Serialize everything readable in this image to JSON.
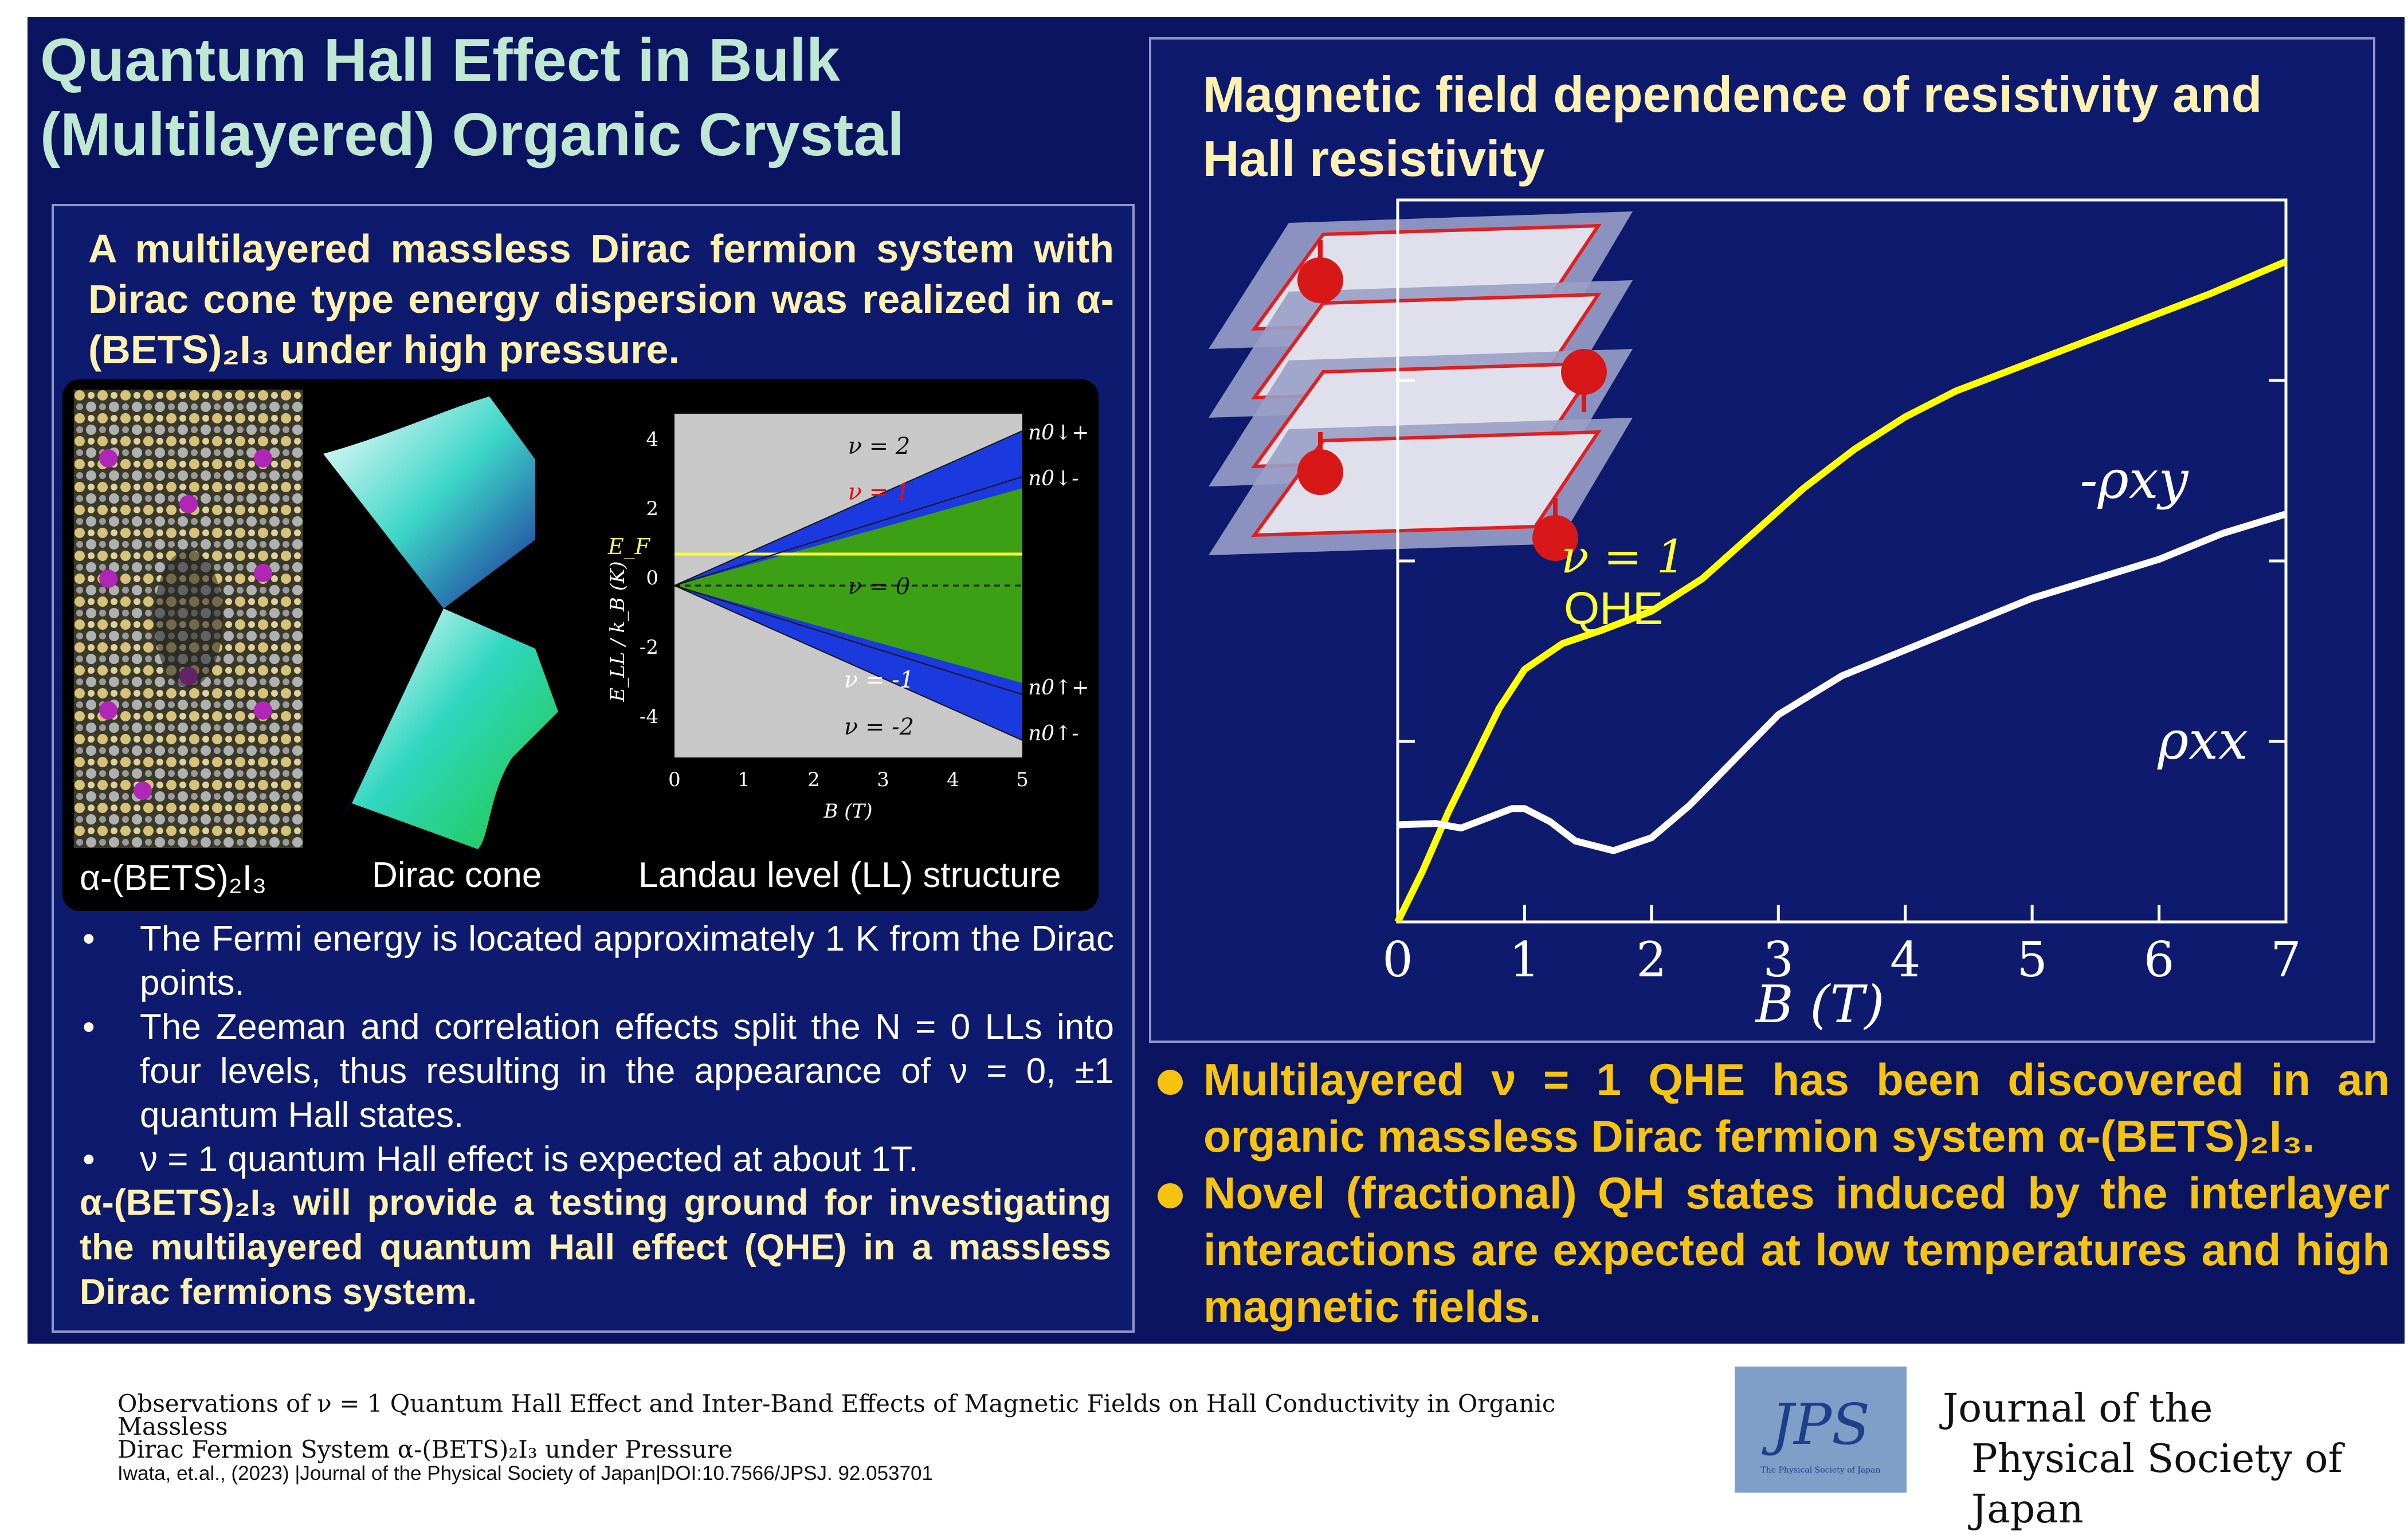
{
  "title": {
    "line1": "Quantum Hall Effect in Bulk",
    "line2": "(Multilayered) Organic Crystal"
  },
  "left_panel": {
    "intro": "A multilayered massless Dirac fermion system with Dirac cone type energy dispersion was realized in α-(BETS)₂I₃ under high pressure.",
    "figure_labels": {
      "crystal": "α-(BETS)₂I₃",
      "cone": "Dirac cone",
      "ll": "Landau level (LL) structure"
    },
    "ll_plot": {
      "xlabel": "B (T)",
      "ylabel": "E_LL / k_B (K)",
      "xticks": [
        "0",
        "1",
        "2",
        "3",
        "4",
        "5"
      ],
      "yticks": [
        "4",
        "2",
        "0",
        "-2",
        "-4"
      ],
      "ef_label": "E_F",
      "region_labels": [
        "ν = 2",
        "ν = 1",
        "ν = 0",
        "ν = -1",
        "ν = -2"
      ],
      "level_labels": [
        "n0↓+",
        "n0↓-",
        "n0↑+",
        "n0↑-"
      ]
    },
    "bullets": [
      "The Fermi energy is located approximately 1 K from the Dirac points.",
      "The Zeeman and correlation effects split the N = 0 LLs into four levels, thus resulting in the appearance of ν = 0, ±1 quantum Hall states.",
      "ν = 1 quantum Hall effect is expected at about 1T."
    ],
    "bullet_symbol": "•",
    "conclusion": "α-(BETS)₂I₃ will provide a testing ground for investigating the multilayered quantum Hall effect (QHE) in a massless Dirac fermions system."
  },
  "right_panel": {
    "title": "Magnetic field dependence of resistivity and Hall resistivity",
    "qhe_label_1": "ν = 1",
    "qhe_label_2": "QHE",
    "chart_data": {
      "type": "line",
      "xlabel": "B (T)",
      "xlim": [
        0,
        7
      ],
      "xticks": [
        "0",
        "1",
        "2",
        "3",
        "4",
        "5",
        "6",
        "7"
      ],
      "series": [
        {
          "name": "-ρxy",
          "color": "#ffff00",
          "x": [
            0,
            0.2,
            0.4,
            0.6,
            0.8,
            1.0,
            1.3,
            1.6,
            2.0,
            2.4,
            2.8,
            3.2,
            3.6,
            4.0,
            4.4,
            4.8,
            5.2,
            5.6,
            6.0,
            6.4,
            7.0
          ],
          "y": [
            0.0,
            0.08,
            0.17,
            0.25,
            0.33,
            0.39,
            0.43,
            0.45,
            0.48,
            0.53,
            0.6,
            0.67,
            0.73,
            0.78,
            0.82,
            0.85,
            0.88,
            0.91,
            0.94,
            0.97,
            1.02
          ]
        },
        {
          "name": "ρxx",
          "color": "#ffffff",
          "x": [
            0,
            0.3,
            0.5,
            0.7,
            0.9,
            1.0,
            1.2,
            1.4,
            1.7,
            2.0,
            2.3,
            2.7,
            3.0,
            3.5,
            4.0,
            4.5,
            5.0,
            5.5,
            6.0,
            6.5,
            7.0
          ],
          "y": [
            0.15,
            0.152,
            0.145,
            0.16,
            0.175,
            0.175,
            0.155,
            0.125,
            0.11,
            0.13,
            0.18,
            0.26,
            0.32,
            0.38,
            0.42,
            0.46,
            0.5,
            0.53,
            0.56,
            0.6,
            0.63
          ]
        }
      ]
    }
  },
  "findings": {
    "item1": "Multilayered ν = 1 QHE has been discovered in an organic massless Dirac fermion system α-(BETS)₂I₃.",
    "item2": "Novel (fractional) QH states induced by the interlayer interactions are expected at low temperatures and high magnetic fields."
  },
  "footer": {
    "paper_title_1": "Observations of ν = 1 Quantum Hall Effect and Inter-Band Effects of Magnetic Fields on Hall Conductivity in Organic Massless",
    "paper_title_2": "Dirac Fermion System α-(BETS)₂I₃ under Pressure",
    "citation": "Iwata, et.al., (2023) |Journal of the Physical Society of Japan|DOI:10.7566/JPSJ. 92.053701"
  },
  "journal": {
    "logo_text": "JPS",
    "logo_small": "The Physical Society of Japan",
    "name_line1": "Journal of the",
    "name_line2": "Physical Society of Japan"
  }
}
